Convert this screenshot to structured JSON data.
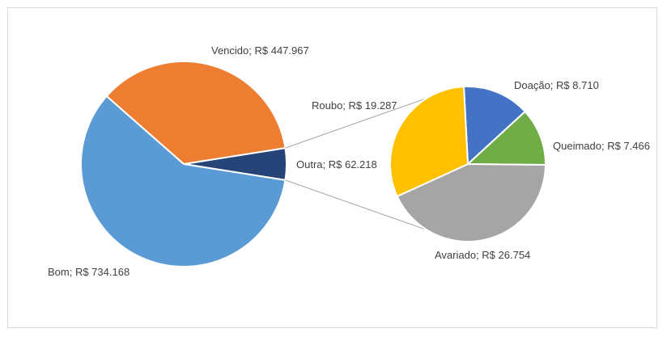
{
  "chart_data": {
    "type": "pie-of-pie",
    "main": {
      "slices": [
        {
          "name": "Vencido",
          "value": 447967,
          "label": "Vencido; R$ 447.967",
          "color": "#ED7D31"
        },
        {
          "name": "Outra",
          "value": 62218,
          "label": "Outra; R$ 62.218",
          "color": "#264478"
        },
        {
          "name": "Bom",
          "value": 734168,
          "label": "Bom; R$ 734.168",
          "color": "#5B9BD5"
        }
      ]
    },
    "secondary": {
      "slices": [
        {
          "name": "Doação",
          "value": 8710,
          "label": "Doação; R$ 8.710",
          "color": "#4472C4"
        },
        {
          "name": "Queimado",
          "value": 7466,
          "label": "Queimado; R$ 7.466",
          "color": "#70AD47"
        },
        {
          "name": "Avariado",
          "value": 26754,
          "label": "Avariado; R$ 26.754",
          "color": "#A5A5A5"
        },
        {
          "name": "Roubo",
          "value": 19287,
          "label": "Roubo; R$ 19.287",
          "color": "#FFC000"
        }
      ]
    },
    "legend": "none",
    "connector_color": "#a6a6a6"
  }
}
